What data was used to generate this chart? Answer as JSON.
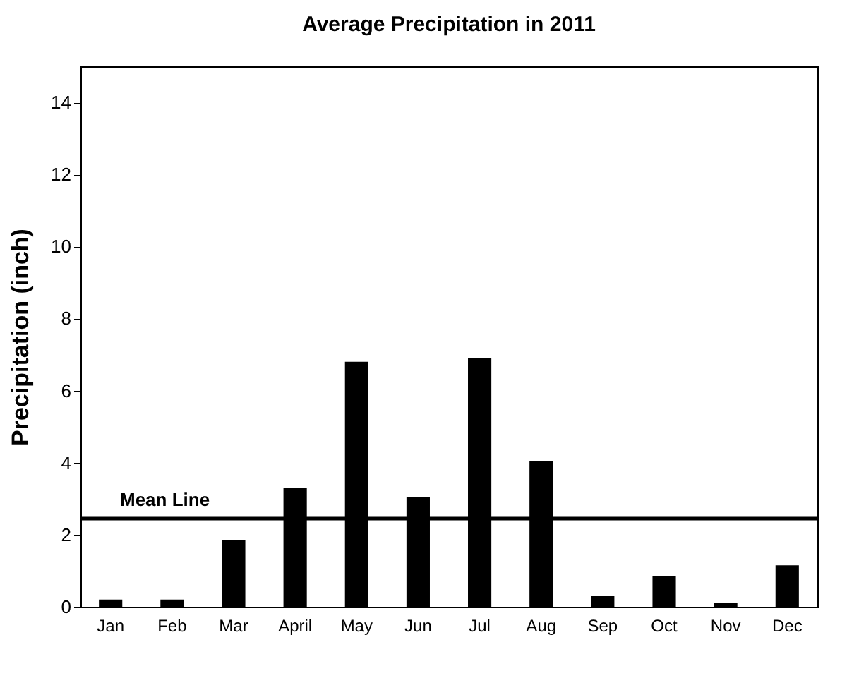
{
  "chart_data": {
    "type": "bar",
    "title": "Average Precipitation in 2011",
    "ylabel": "Precipitation (inch)",
    "categories": [
      "Jan",
      "Feb",
      "Mar",
      "April",
      "May",
      "Jun",
      "Jul",
      "Aug",
      "Sep",
      "Oct",
      "Nov",
      "Dec"
    ],
    "values": [
      0.2,
      0.2,
      1.85,
      3.3,
      6.8,
      3.05,
      6.9,
      4.05,
      0.3,
      0.85,
      0.1,
      1.15
    ],
    "color": "#000000",
    "ylim": [
      0,
      15
    ],
    "yticks": [
      0,
      2,
      4,
      6,
      8,
      10,
      12,
      14
    ],
    "ref_lines": [
      {
        "axis": "y",
        "value": 2.45,
        "label": "Mean Line",
        "color": "#000000"
      }
    ],
    "grid": false
  }
}
